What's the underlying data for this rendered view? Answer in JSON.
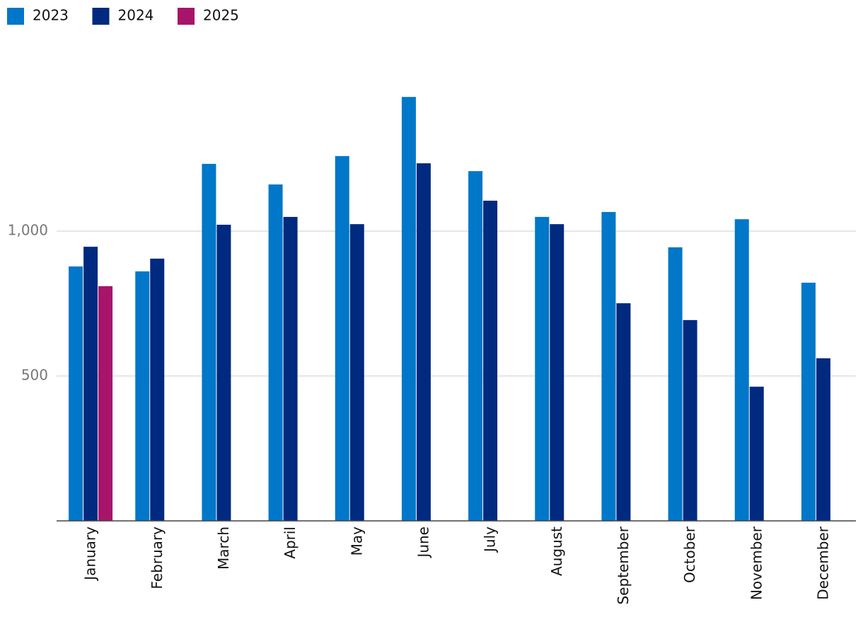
{
  "chart_data": {
    "type": "bar",
    "categories": [
      "January",
      "February",
      "March",
      "April",
      "May",
      "June",
      "July",
      "August",
      "September",
      "October",
      "November",
      "December"
    ],
    "series": [
      {
        "name": "2023",
        "color": "#0077c8",
        "values": [
          878,
          861,
          1232,
          1161,
          1259,
          1463,
          1207,
          1049,
          1066,
          944,
          1041,
          822
        ]
      },
      {
        "name": "2024",
        "color": "#002a7f",
        "values": [
          946,
          905,
          1022,
          1049,
          1024,
          1234,
          1105,
          1024,
          751,
          693,
          463,
          561
        ]
      },
      {
        "name": "2025",
        "color": "#a6156a",
        "values": [
          810,
          null,
          null,
          null,
          null,
          null,
          null,
          null,
          null,
          null,
          null,
          null
        ]
      }
    ],
    "ylim": [
      0,
      1600
    ],
    "yticks": [
      500,
      {
        "value": 1000,
        "label": "1,000"
      }
    ],
    "grid": true,
    "legend": "top-left"
  }
}
